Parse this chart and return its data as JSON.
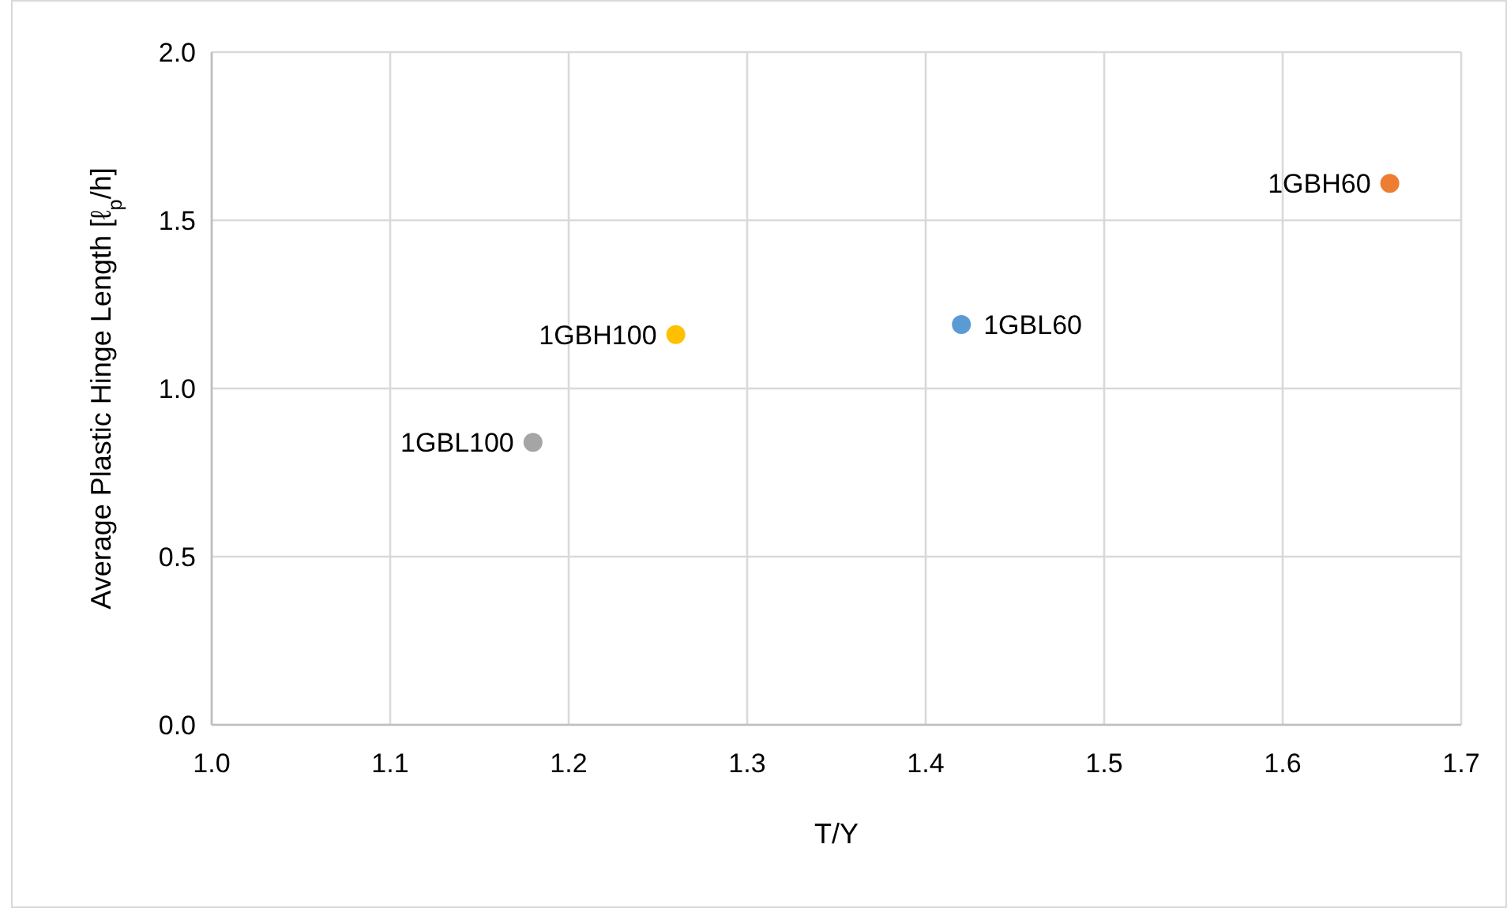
{
  "chart_data": {
    "type": "scatter",
    "xlabel": "T/Y",
    "ylabel": "Average Plastic Hinge Length [ℓ$_{p}$/h]",
    "xlim": [
      1.0,
      1.7
    ],
    "xticks": [
      {
        "value": 1.0,
        "label": "1.0"
      },
      {
        "value": 1.1,
        "label": "1.1"
      },
      {
        "value": 1.2,
        "label": "1.2"
      },
      {
        "value": 1.3,
        "label": "1.3"
      },
      {
        "value": 1.4,
        "label": "1.4"
      },
      {
        "value": 1.5,
        "label": "1.5"
      },
      {
        "value": 1.6,
        "label": "1.6"
      },
      {
        "value": 1.7,
        "label": "1.7"
      }
    ],
    "ylim": [
      0.0,
      2.0
    ],
    "yticks": [
      {
        "value": 0.0,
        "label": "0.0"
      },
      {
        "value": 0.5,
        "label": "0.5"
      },
      {
        "value": 1.0,
        "label": "1.0"
      },
      {
        "value": 1.5,
        "label": "1.5"
      },
      {
        "value": 2.0,
        "label": "2.0"
      }
    ],
    "grid": true,
    "marker": "circle",
    "series": [
      {
        "name": "1GBL100",
        "color": "#a5a5a5",
        "x": [
          1.18
        ],
        "values": [
          0.84
        ]
      },
      {
        "name": "1GBH100",
        "color": "#ffc000",
        "x": [
          1.26
        ],
        "values": [
          1.16
        ]
      },
      {
        "name": "1GBL60",
        "color": "#5b9bd5",
        "x": [
          1.42
        ],
        "values": [
          1.19
        ]
      },
      {
        "name": "1GBH60",
        "color": "#ed7d31",
        "x": [
          1.66
        ],
        "values": [
          1.61
        ]
      }
    ]
  }
}
